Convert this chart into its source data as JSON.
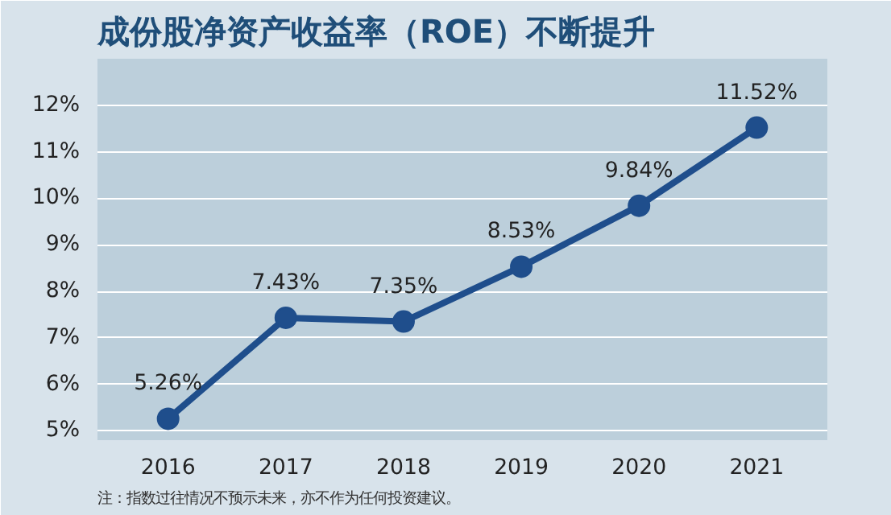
{
  "chart_data": {
    "type": "line",
    "title": "成份股净资产收益率（ROE）不断提升",
    "categories": [
      "2016",
      "2017",
      "2018",
      "2019",
      "2020",
      "2021"
    ],
    "series": [
      {
        "color": "#1f4e8c",
        "values": [
          5.26,
          7.43,
          7.35,
          8.53,
          9.84,
          11.52
        ],
        "value_labels": [
          "5.26%",
          "7.43%",
          "7.35%",
          "8.53%",
          "9.84%",
          "11.52%"
        ]
      }
    ],
    "ylim": [
      4.8,
      13
    ],
    "yticks": [
      {
        "value": 5,
        "label": "5%"
      },
      {
        "value": 6,
        "label": "6%"
      },
      {
        "value": 7,
        "label": "7%"
      },
      {
        "value": 8,
        "label": "8%"
      },
      {
        "value": 9,
        "label": "9%"
      },
      {
        "value": 10,
        "label": "10%"
      },
      {
        "value": 11,
        "label": "11%"
      },
      {
        "value": 12,
        "label": "12%"
      }
    ],
    "grid": "y",
    "marker": "circle",
    "line_style": "solid",
    "annotations": [
      "注：指数过往情况不预示未来，亦不作为任何投资建议。"
    ]
  }
}
